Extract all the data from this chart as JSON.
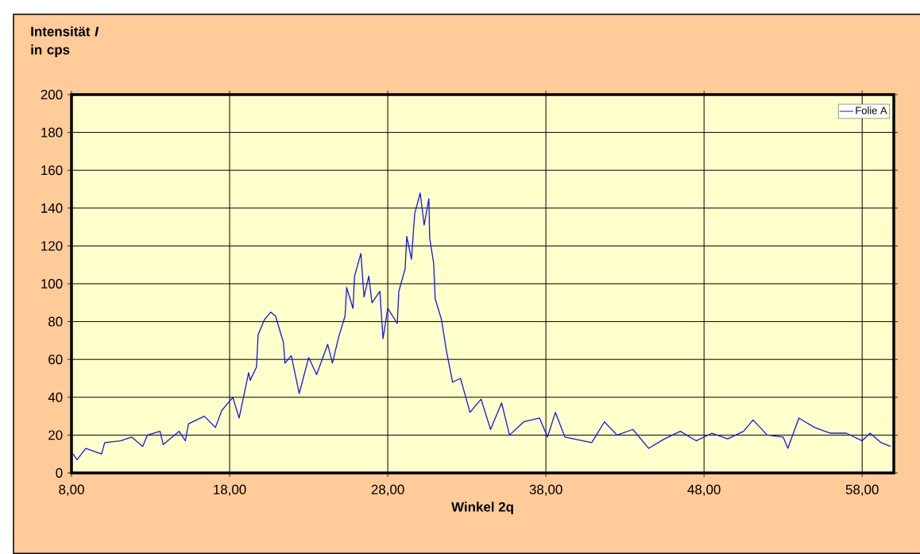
{
  "chart_data": {
    "type": "line",
    "xlabel": "Winkel 2q",
    "ylabel": "Intensität *I* in cps",
    "x": [
      8.1,
      8.35,
      8.9,
      9.9,
      10.1,
      11.1,
      11.8,
      12.5,
      12.8,
      13.6,
      13.8,
      14.8,
      15.2,
      15.4,
      16.4,
      17.1,
      17.5,
      17.8,
      18.2,
      18.6,
      19.2,
      19.3,
      19.7,
      19.8,
      20.2,
      20.6,
      20.9,
      21.4,
      21.5,
      21.9,
      22.4,
      23.0,
      23.5,
      24.2,
      24.5,
      24.9,
      25.3,
      25.4,
      25.8,
      25.9,
      26.3,
      26.5,
      26.8,
      27.0,
      27.5,
      27.7,
      28.0,
      28.6,
      28.7,
      29.1,
      29.2,
      29.5,
      29.7,
      30.05,
      30.3,
      30.6,
      30.65,
      30.9,
      31.0,
      31.4,
      31.7,
      32.1,
      32.6,
      32.9,
      33.2,
      33.9,
      34.5,
      35.2,
      35.7,
      36.6,
      37.6,
      38.1,
      38.6,
      39.2,
      40.9,
      41.7,
      42.5,
      43.5,
      44.5,
      45.5,
      46.5,
      47.5,
      48.5,
      49.5,
      50.5,
      51.1,
      52.0,
      53.0,
      53.3,
      54.0,
      55.0,
      56.0,
      57.0,
      58.0,
      58.5,
      59.2,
      59.8
    ],
    "series": [
      {
        "name": "Folie A",
        "color": "#1414f0",
        "values": [
          10,
          7,
          13,
          10,
          16,
          17,
          19,
          14,
          20,
          22,
          15,
          22,
          17,
          26,
          30,
          24,
          33,
          36,
          40,
          29,
          53,
          49,
          56,
          73,
          81,
          85,
          83,
          69,
          58,
          62,
          42,
          61,
          52,
          68,
          58,
          72,
          83,
          98,
          87,
          104,
          116,
          93,
          104,
          90,
          96,
          71,
          87,
          79,
          96,
          108,
          125,
          113,
          137,
          148,
          131,
          145,
          124,
          111,
          92,
          81,
          65,
          48,
          50,
          41,
          32,
          39,
          23,
          37,
          20,
          27,
          29,
          19,
          32,
          19,
          16,
          27,
          20,
          23,
          13,
          18,
          22,
          17,
          21,
          18,
          22,
          28,
          20,
          19,
          13,
          29,
          24,
          21,
          21,
          17,
          21,
          16,
          14
        ]
      }
    ],
    "xlim": [
      8,
      60
    ],
    "ylim": [
      0,
      200
    ],
    "xticks": [
      {
        "value": 8,
        "label": "8,00"
      },
      {
        "value": 18,
        "label": "18,00"
      },
      {
        "value": 28,
        "label": "28,00"
      },
      {
        "value": 38,
        "label": "38,00"
      },
      {
        "value": 48,
        "label": "48,00"
      },
      {
        "value": 58,
        "label": "58,00"
      }
    ],
    "yticks": [
      0,
      20,
      40,
      60,
      80,
      100,
      120,
      140,
      160,
      180,
      200
    ],
    "grid": true,
    "legend": "top right"
  }
}
